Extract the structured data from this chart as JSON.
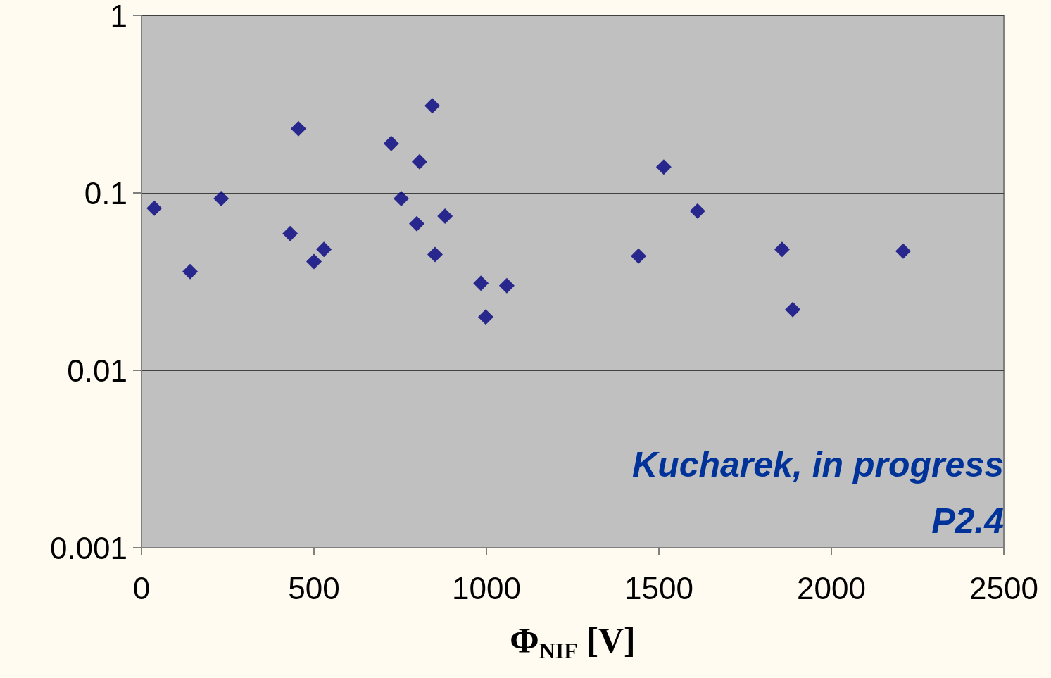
{
  "chart_data": {
    "type": "scatter",
    "xlabel": "Φ$_{NIF}$ [V]",
    "x": [
      37,
      141,
      231,
      431,
      455,
      500,
      529,
      724,
      753,
      798,
      806,
      843,
      851,
      880,
      984,
      998,
      1059,
      1441,
      1514,
      1612,
      1857,
      1888,
      2208
    ],
    "series": [
      {
        "color": "#000080",
        "values": [
          0.082,
          0.036,
          0.093,
          0.059,
          0.23,
          0.041,
          0.048,
          0.19,
          0.093,
          0.067,
          0.15,
          0.31,
          0.045,
          0.074,
          0.031,
          0.02,
          0.03,
          0.044,
          0.14,
          0.079,
          0.048,
          0.022,
          0.047
        ]
      }
    ],
    "xlim": [
      0,
      2500
    ],
    "xticks": [
      0,
      500,
      1000,
      1500,
      2000,
      2500
    ],
    "ylim": [
      0.001,
      1
    ],
    "yticks": [
      0.001,
      0.01,
      0.1,
      1
    ],
    "log": "y",
    "grid": "y",
    "marker": "diamond",
    "annotations": [
      "Kucharek, in progress",
      "P2.4"
    ]
  }
}
